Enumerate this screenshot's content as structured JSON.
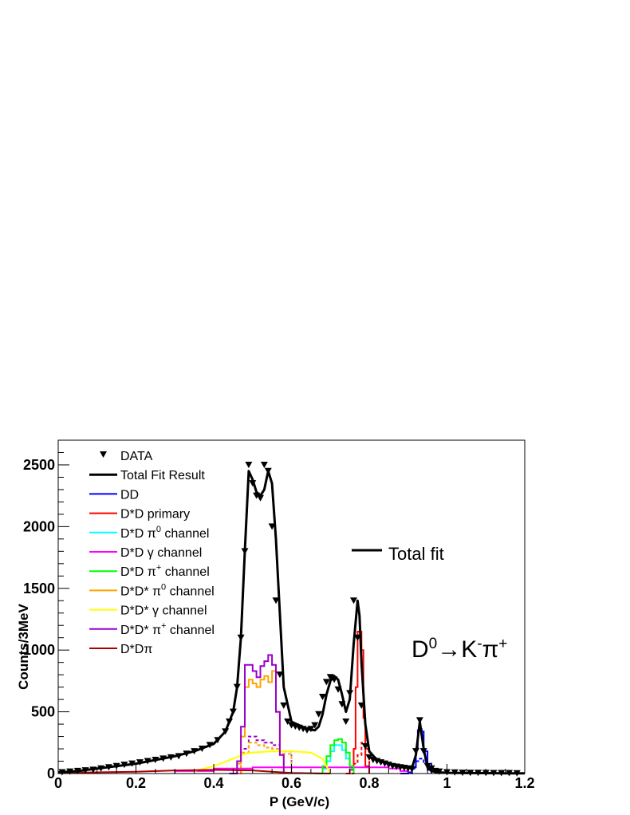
{
  "chart_data": {
    "type": "line",
    "xlabel": "P (GeV/c)",
    "ylabel": "Counts/3MeV",
    "xlim": [
      0,
      1.2
    ],
    "ylim": [
      0,
      2700
    ],
    "x_ticks": [
      "0",
      "0.2",
      "0.4",
      "0.6",
      "0.8",
      "1",
      "1.2"
    ],
    "y_ticks": [
      "0",
      "500",
      "1000",
      "1500",
      "2000",
      "2500"
    ],
    "annotation": "Total fit",
    "decay_label": {
      "parent": "D",
      "parent_sup": "0",
      "arrow": "→",
      "k": "K",
      "k_sup": "-",
      "pi": "π",
      "pi_sup": "+"
    },
    "legend": [
      {
        "id": "data",
        "label": "DATA",
        "color": "#000000",
        "style": "marker"
      },
      {
        "id": "total",
        "label": "Total Fit Result",
        "color": "#000000",
        "style": "line"
      },
      {
        "id": "dd",
        "label": "DD",
        "color": "#0000ff",
        "style": "line"
      },
      {
        "id": "dsd_primary",
        "label": "D*D primary",
        "color": "#ff0000",
        "style": "line"
      },
      {
        "id": "dsd_pi0",
        "label": "D*D π",
        "sup": "0",
        "tail": " channel",
        "color": "#00ffff",
        "style": "line"
      },
      {
        "id": "dsd_gamma",
        "label": "D*D γ channel",
        "color": "#ff00ff",
        "style": "line"
      },
      {
        "id": "dsd_pip",
        "label": "D*D π",
        "sup": "+",
        "tail": " channel",
        "color": "#00ff00",
        "style": "line"
      },
      {
        "id": "dsds_pi0",
        "label": "D*D* π",
        "sup": "0",
        "tail": " channel",
        "color": "#ffa500",
        "style": "line"
      },
      {
        "id": "dsds_gamma",
        "label": "D*D* γ channel",
        "color": "#ffff00",
        "style": "line"
      },
      {
        "id": "dsds_pip",
        "label": "D*D* π",
        "sup": "+",
        "tail": " channel",
        "color": "#9900cc",
        "style": "line"
      },
      {
        "id": "dsdpi",
        "label": "D*Dπ",
        "color": "#aa0000",
        "style": "line"
      }
    ],
    "series": [
      {
        "id": "data",
        "name": "DATA",
        "color": "#000000",
        "kind": "points",
        "x": [
          0.01,
          0.03,
          0.05,
          0.07,
          0.09,
          0.11,
          0.13,
          0.15,
          0.17,
          0.19,
          0.21,
          0.23,
          0.25,
          0.27,
          0.29,
          0.31,
          0.33,
          0.35,
          0.37,
          0.39,
          0.41,
          0.43,
          0.44,
          0.45,
          0.46,
          0.47,
          0.48,
          0.49,
          0.5,
          0.51,
          0.52,
          0.53,
          0.54,
          0.55,
          0.56,
          0.57,
          0.58,
          0.59,
          0.6,
          0.61,
          0.62,
          0.63,
          0.64,
          0.65,
          0.66,
          0.67,
          0.68,
          0.69,
          0.7,
          0.71,
          0.72,
          0.73,
          0.74,
          0.75,
          0.76,
          0.77,
          0.78,
          0.79,
          0.8,
          0.81,
          0.82,
          0.83,
          0.84,
          0.85,
          0.86,
          0.87,
          0.88,
          0.89,
          0.9,
          0.91,
          0.92,
          0.93,
          0.94,
          0.95,
          0.96,
          0.97,
          0.98,
          1.0,
          1.02,
          1.04,
          1.06,
          1.08,
          1.1,
          1.12,
          1.14,
          1.16,
          1.18
        ],
        "y": [
          10,
          15,
          20,
          25,
          30,
          40,
          50,
          60,
          70,
          80,
          90,
          100,
          110,
          120,
          130,
          140,
          160,
          180,
          200,
          230,
          270,
          340,
          420,
          500,
          700,
          1100,
          1800,
          2500,
          2350,
          2250,
          2230,
          2500,
          2450,
          2000,
          1400,
          800,
          550,
          420,
          390,
          380,
          370,
          360,
          350,
          360,
          390,
          480,
          620,
          740,
          780,
          760,
          680,
          560,
          420,
          650,
          1400,
          1100,
          550,
          220,
          130,
          110,
          100,
          90,
          80,
          70,
          60,
          55,
          50,
          45,
          40,
          35,
          180,
          430,
          180,
          60,
          40,
          20,
          15,
          10,
          8,
          6,
          5,
          5,
          4,
          3,
          3,
          3,
          2
        ]
      },
      {
        "id": "total",
        "name": "Total Fit Result",
        "color": "#000000",
        "kind": "line",
        "x": [
          0.0,
          0.05,
          0.1,
          0.15,
          0.2,
          0.25,
          0.3,
          0.35,
          0.4,
          0.43,
          0.45,
          0.46,
          0.47,
          0.48,
          0.49,
          0.5,
          0.51,
          0.52,
          0.53,
          0.54,
          0.55,
          0.56,
          0.57,
          0.58,
          0.6,
          0.62,
          0.64,
          0.66,
          0.67,
          0.68,
          0.69,
          0.7,
          0.71,
          0.72,
          0.73,
          0.74,
          0.75,
          0.76,
          0.77,
          0.775,
          0.78,
          0.79,
          0.8,
          0.82,
          0.84,
          0.86,
          0.88,
          0.9,
          0.91,
          0.92,
          0.93,
          0.94,
          0.95,
          0.96,
          0.98,
          1.0,
          1.05,
          1.1,
          1.15,
          1.2
        ],
        "y": [
          10,
          20,
          40,
          60,
          80,
          110,
          140,
          180,
          240,
          340,
          500,
          700,
          1100,
          1800,
          2450,
          2380,
          2280,
          2250,
          2300,
          2450,
          2350,
          1900,
          1300,
          700,
          420,
          390,
          360,
          350,
          380,
          480,
          640,
          750,
          790,
          760,
          640,
          500,
          600,
          1050,
          1400,
          1280,
          900,
          400,
          180,
          110,
          90,
          70,
          55,
          45,
          45,
          150,
          420,
          200,
          50,
          20,
          10,
          6,
          4,
          3,
          2,
          2
        ]
      },
      {
        "id": "dd",
        "name": "DD",
        "color": "#0000ff",
        "kind": "step",
        "x": [
          0.88,
          0.9,
          0.91,
          0.92,
          0.925,
          0.93,
          0.935,
          0.94,
          0.95,
          0.96
        ],
        "y": [
          0,
          10,
          50,
          200,
          350,
          360,
          340,
          180,
          30,
          0
        ]
      },
      {
        "id": "dsd_primary",
        "name": "D*D primary",
        "color": "#ff0000",
        "kind": "step",
        "x": [
          0.74,
          0.75,
          0.76,
          0.765,
          0.77,
          0.775,
          0.78,
          0.785,
          0.79,
          0.8
        ],
        "y": [
          0,
          30,
          200,
          700,
          1150,
          1150,
          1000,
          450,
          60,
          0
        ]
      },
      {
        "id": "dsd_pi0",
        "name": "D*D π0 channel",
        "color": "#00ffff",
        "kind": "step",
        "x": [
          0.66,
          0.68,
          0.69,
          0.7,
          0.71,
          0.72,
          0.73,
          0.74,
          0.75,
          0.76
        ],
        "y": [
          0,
          40,
          100,
          180,
          230,
          230,
          190,
          120,
          40,
          0
        ]
      },
      {
        "id": "dsd_gamma",
        "name": "D*D γ channel",
        "color": "#ff00ff",
        "kind": "step",
        "x": [
          0.3,
          0.4,
          0.5,
          0.6,
          0.7,
          0.8,
          0.85,
          0.88,
          0.9
        ],
        "y": [
          20,
          40,
          50,
          50,
          50,
          50,
          40,
          20,
          0
        ]
      },
      {
        "id": "dsd_pip",
        "name": "D*D π+ channel",
        "color": "#00ff00",
        "kind": "step",
        "x": [
          0.66,
          0.68,
          0.69,
          0.7,
          0.71,
          0.72,
          0.73,
          0.74,
          0.75,
          0.76
        ],
        "y": [
          0,
          60,
          140,
          230,
          270,
          280,
          250,
          170,
          60,
          0
        ]
      },
      {
        "id": "dsds_pi0",
        "name": "D*D* π0 channel",
        "color": "#ffa500",
        "kind": "step",
        "x": [
          0.44,
          0.46,
          0.47,
          0.48,
          0.49,
          0.5,
          0.51,
          0.52,
          0.53,
          0.54,
          0.55,
          0.56,
          0.57,
          0.58
        ],
        "y": [
          0,
          80,
          300,
          700,
          760,
          730,
          700,
          760,
          790,
          740,
          830,
          500,
          150,
          0
        ]
      },
      {
        "id": "dsds_gamma",
        "name": "D*D* γ channel",
        "color": "#ffff00",
        "kind": "line",
        "x": [
          0.35,
          0.4,
          0.45,
          0.48,
          0.5,
          0.55,
          0.6,
          0.65,
          0.68,
          0.7
        ],
        "y": [
          20,
          60,
          120,
          160,
          170,
          180,
          180,
          170,
          120,
          0
        ]
      },
      {
        "id": "dsds_pip",
        "name": "D*D* π+ channel",
        "color": "#9900cc",
        "kind": "step",
        "x": [
          0.44,
          0.46,
          0.47,
          0.48,
          0.49,
          0.5,
          0.51,
          0.52,
          0.53,
          0.54,
          0.55,
          0.56,
          0.57,
          0.58
        ],
        "y": [
          0,
          100,
          380,
          880,
          880,
          830,
          780,
          870,
          910,
          960,
          880,
          500,
          150,
          0
        ]
      },
      {
        "id": "dsdpi",
        "name": "D*Dπ",
        "color": "#aa0000",
        "kind": "line",
        "x": [
          0.0,
          0.1,
          0.2,
          0.3,
          0.4,
          0.5,
          0.55,
          0.6,
          0.7
        ],
        "y": [
          5,
          10,
          15,
          25,
          30,
          25,
          15,
          5,
          0
        ]
      }
    ],
    "dashed_components": [
      {
        "id": "dsds_pip_dash",
        "color": "#9900cc",
        "x": [
          0.44,
          0.47,
          0.49,
          0.51,
          0.53,
          0.55,
          0.57,
          0.6
        ],
        "y": [
          0,
          200,
          300,
          270,
          250,
          230,
          180,
          0
        ]
      },
      {
        "id": "dsds_pi0_dash",
        "color": "#ffa500",
        "x": [
          0.44,
          0.47,
          0.49,
          0.51,
          0.53,
          0.55,
          0.57,
          0.6
        ],
        "y": [
          0,
          170,
          250,
          230,
          210,
          200,
          160,
          0
        ]
      },
      {
        "id": "dsd_primary_dash",
        "color": "#ff0000",
        "x": [
          0.74,
          0.76,
          0.77,
          0.78,
          0.79,
          0.8
        ],
        "y": [
          0,
          80,
          150,
          250,
          200,
          0
        ]
      },
      {
        "id": "dd_dash",
        "color": "#0000ff",
        "x": [
          0.88,
          0.91,
          0.92,
          0.93,
          0.94,
          0.96
        ],
        "y": [
          0,
          40,
          100,
          120,
          80,
          0
        ]
      }
    ],
    "grid": false,
    "legend_position": "top-left"
  }
}
